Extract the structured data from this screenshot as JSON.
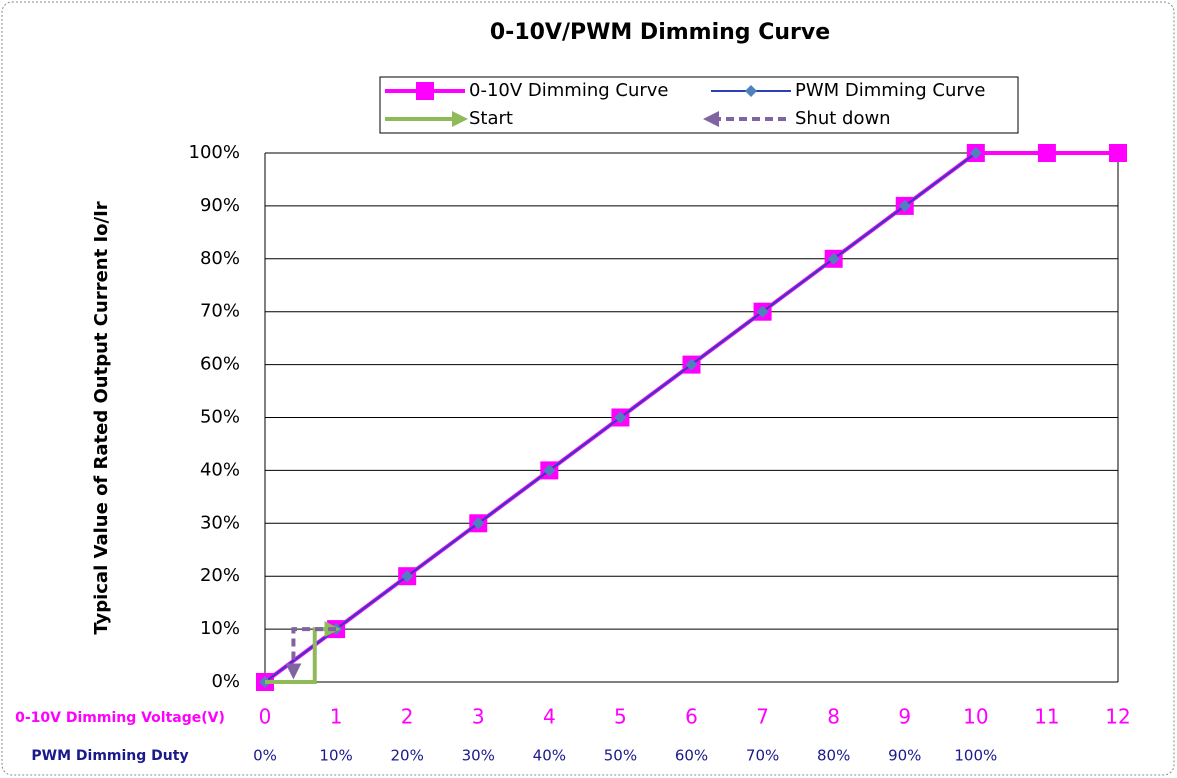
{
  "chart_data": {
    "type": "line",
    "title": "0-10V/PWM Dimming Curve",
    "y_label": "Typical Value of Rated Output Current Io/Ir",
    "x_label": "0-10V Dimming Voltage(V)",
    "x2_label": "PWM Dimming Duty",
    "xlim": [
      0,
      12
    ],
    "xticks": [
      0,
      1,
      2,
      3,
      4,
      5,
      6,
      7,
      8,
      9,
      10,
      11,
      12
    ],
    "x2ticks": [
      {
        "value": 0,
        "label": "0%"
      },
      {
        "value": 1,
        "label": "10%"
      },
      {
        "value": 2,
        "label": "20%"
      },
      {
        "value": 3,
        "label": "30%"
      },
      {
        "value": 4,
        "label": "40%"
      },
      {
        "value": 5,
        "label": "50%"
      },
      {
        "value": 6,
        "label": "60%"
      },
      {
        "value": 7,
        "label": "70%"
      },
      {
        "value": 8,
        "label": "80%"
      },
      {
        "value": 9,
        "label": "90%"
      },
      {
        "value": 10,
        "label": "100%"
      }
    ],
    "ylim": [
      0,
      100
    ],
    "yticks": [
      {
        "value": 0,
        "label": "0%"
      },
      {
        "value": 10,
        "label": "10%"
      },
      {
        "value": 20,
        "label": "20%"
      },
      {
        "value": 30,
        "label": "30%"
      },
      {
        "value": 40,
        "label": "40%"
      },
      {
        "value": 50,
        "label": "50%"
      },
      {
        "value": 60,
        "label": "60%"
      },
      {
        "value": 70,
        "label": "70%"
      },
      {
        "value": 80,
        "label": "80%"
      },
      {
        "value": 90,
        "label": "90%"
      },
      {
        "value": 100,
        "label": "100%"
      }
    ],
    "grid": true,
    "legend": "top",
    "series": [
      {
        "name": "0-10V Dimming Curve",
        "color": "#ff00ff",
        "marker": "square",
        "x": [
          0,
          1,
          2,
          3,
          4,
          5,
          6,
          7,
          8,
          9,
          10,
          11,
          12
        ],
        "values": [
          0,
          10,
          20,
          30,
          40,
          50,
          60,
          70,
          80,
          90,
          100,
          100,
          100
        ]
      },
      {
        "name": "PWM Dimming Curve",
        "color": "#2a3fb8",
        "marker": "diamond",
        "x": [
          0,
          1,
          2,
          3,
          4,
          5,
          6,
          7,
          8,
          9,
          10
        ],
        "values": [
          0,
          10,
          20,
          30,
          40,
          50,
          60,
          70,
          80,
          90,
          100
        ]
      },
      {
        "name": "Start",
        "color": "#8fba5a",
        "marker": "arrow",
        "x": [
          0,
          0.7,
          0.7,
          0.95
        ],
        "values": [
          0,
          0,
          10,
          10
        ]
      },
      {
        "name": "Shut down",
        "color": "#8064a2",
        "marker": "arrow",
        "dashed": true,
        "x": [
          1,
          0.4,
          0.4
        ],
        "values": [
          10,
          10,
          2
        ]
      }
    ]
  }
}
